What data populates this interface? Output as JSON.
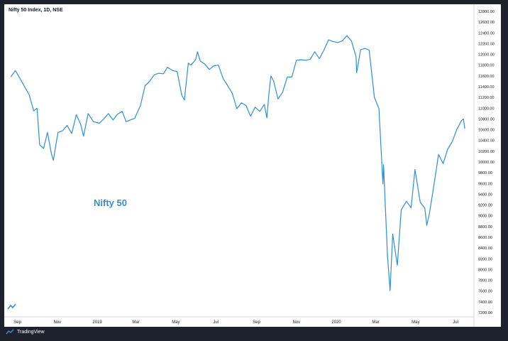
{
  "header": {
    "symbol_title": "Nifty 50 Index, 1D, NSE"
  },
  "series_label": "Nifty 50",
  "branding": {
    "label": "TradingView"
  },
  "colors": {
    "line": "#2d8fd5",
    "background": "#ffffff",
    "frame": "#1e222d"
  },
  "chart_data": {
    "type": "line",
    "grid": false,
    "y_axis_position": "right",
    "ylim": [
      7200,
      12800
    ],
    "y_ticks": [
      12800,
      12600,
      12400,
      12200,
      12000,
      11800,
      11600,
      11400,
      11200,
      11000,
      10800,
      10600,
      10400,
      10200,
      10000,
      9800,
      9600,
      9400,
      9200,
      9000,
      8800,
      8600,
      8400,
      8200,
      8000,
      7800,
      7600,
      7400,
      7200
    ],
    "y_tick_labels": [
      "12800.00",
      "12600.00",
      "12400.00",
      "12200.00",
      "12000.00",
      "11800.00",
      "11600.00",
      "11400.00",
      "11200.00",
      "11000.00",
      "10800.00",
      "10600.00",
      "10400.00",
      "10200.00",
      "10000.00",
      "9800.00",
      "9600.00",
      "9400.00",
      "9200.00",
      "9000.00",
      "8800.00",
      "8600.00",
      "8400.00",
      "8200.00",
      "8000.00",
      "7800.00",
      "7600.00",
      "7400.00",
      "7200.00"
    ],
    "x_tick_labels": [
      {
        "label": "Sep",
        "date": "2018-09-01"
      },
      {
        "label": "Nov",
        "date": "2018-11-01"
      },
      {
        "label": "2019",
        "date": "2019-01-01"
      },
      {
        "label": "Mar",
        "date": "2019-03-01"
      },
      {
        "label": "May",
        "date": "2019-05-01"
      },
      {
        "label": "Jul",
        "date": "2019-07-01"
      },
      {
        "label": "Sep",
        "date": "2019-09-01"
      },
      {
        "label": "Nov",
        "date": "2019-11-01"
      },
      {
        "label": "2020",
        "date": "2020-01-01"
      },
      {
        "label": "Mar",
        "date": "2020-03-01"
      },
      {
        "label": "May",
        "date": "2020-05-01"
      },
      {
        "label": "Jul",
        "date": "2020-07-01"
      }
    ],
    "series": [
      {
        "values": [
          [
            "2018-08-22",
            11580
          ],
          [
            "2018-08-29",
            11700
          ],
          [
            "2018-09-05",
            11550
          ],
          [
            "2018-09-12",
            11400
          ],
          [
            "2018-09-19",
            11250
          ],
          [
            "2018-09-26",
            10950
          ],
          [
            "2018-10-01",
            11000
          ],
          [
            "2018-10-05",
            10320
          ],
          [
            "2018-10-11",
            10250
          ],
          [
            "2018-10-17",
            10550
          ],
          [
            "2018-10-23",
            10150
          ],
          [
            "2018-10-26",
            10030
          ],
          [
            "2018-11-02",
            10550
          ],
          [
            "2018-11-09",
            10580
          ],
          [
            "2018-11-16",
            10680
          ],
          [
            "2018-11-23",
            10530
          ],
          [
            "2018-11-30",
            10880
          ],
          [
            "2018-12-07",
            10690
          ],
          [
            "2018-12-11",
            10480
          ],
          [
            "2018-12-18",
            10900
          ],
          [
            "2018-12-26",
            10750
          ],
          [
            "2019-01-04",
            10720
          ],
          [
            "2019-01-11",
            10800
          ],
          [
            "2019-01-18",
            10900
          ],
          [
            "2019-01-25",
            10780
          ],
          [
            "2019-02-01",
            10890
          ],
          [
            "2019-02-08",
            10940
          ],
          [
            "2019-02-14",
            10750
          ],
          [
            "2019-02-20",
            10780
          ],
          [
            "2019-02-27",
            10810
          ],
          [
            "2019-03-08",
            11050
          ],
          [
            "2019-03-15",
            11420
          ],
          [
            "2019-03-22",
            11500
          ],
          [
            "2019-03-29",
            11620
          ],
          [
            "2019-04-05",
            11650
          ],
          [
            "2019-04-12",
            11640
          ],
          [
            "2019-04-18",
            11760
          ],
          [
            "2019-04-26",
            11700
          ],
          [
            "2019-05-03",
            11680
          ],
          [
            "2019-05-10",
            11240
          ],
          [
            "2019-05-14",
            11150
          ],
          [
            "2019-05-20",
            11840
          ],
          [
            "2019-05-24",
            11800
          ],
          [
            "2019-05-31",
            11900
          ],
          [
            "2019-06-03",
            12050
          ],
          [
            "2019-06-07",
            11880
          ],
          [
            "2019-06-14",
            11820
          ],
          [
            "2019-06-21",
            11720
          ],
          [
            "2019-06-28",
            11790
          ],
          [
            "2019-07-05",
            11800
          ],
          [
            "2019-07-12",
            11550
          ],
          [
            "2019-07-19",
            11420
          ],
          [
            "2019-07-26",
            11280
          ],
          [
            "2019-08-02",
            10990
          ],
          [
            "2019-08-09",
            11100
          ],
          [
            "2019-08-16",
            11050
          ],
          [
            "2019-08-23",
            10850
          ],
          [
            "2019-08-30",
            11020
          ],
          [
            "2019-09-06",
            10940
          ],
          [
            "2019-09-13",
            11070
          ],
          [
            "2019-09-17",
            10820
          ],
          [
            "2019-09-20",
            11270
          ],
          [
            "2019-09-23",
            11600
          ],
          [
            "2019-09-27",
            11510
          ],
          [
            "2019-10-04",
            11170
          ],
          [
            "2019-10-11",
            11300
          ],
          [
            "2019-10-18",
            11580
          ],
          [
            "2019-10-25",
            11580
          ],
          [
            "2019-11-01",
            11890
          ],
          [
            "2019-11-08",
            11900
          ],
          [
            "2019-11-15",
            11890
          ],
          [
            "2019-11-22",
            11910
          ],
          [
            "2019-11-29",
            12050
          ],
          [
            "2019-12-06",
            11920
          ],
          [
            "2019-12-13",
            12080
          ],
          [
            "2019-12-20",
            12270
          ],
          [
            "2019-12-27",
            12240
          ],
          [
            "2020-01-03",
            12220
          ],
          [
            "2020-01-10",
            12250
          ],
          [
            "2020-01-17",
            12350
          ],
          [
            "2020-01-24",
            12250
          ],
          [
            "2020-01-31",
            11960
          ],
          [
            "2020-02-01",
            11660
          ],
          [
            "2020-02-07",
            12090
          ],
          [
            "2020-02-14",
            12110
          ],
          [
            "2020-02-20",
            12080
          ],
          [
            "2020-02-28",
            11200
          ],
          [
            "2020-03-06",
            10990
          ],
          [
            "2020-03-12",
            9590
          ],
          [
            "2020-03-13",
            9950
          ],
          [
            "2020-03-19",
            8260
          ],
          [
            "2020-03-23",
            7610
          ],
          [
            "2020-03-27",
            8660
          ],
          [
            "2020-04-03",
            8080
          ],
          [
            "2020-04-09",
            9110
          ],
          [
            "2020-04-17",
            9270
          ],
          [
            "2020-04-24",
            9150
          ],
          [
            "2020-04-30",
            9860
          ],
          [
            "2020-05-08",
            9250
          ],
          [
            "2020-05-15",
            9140
          ],
          [
            "2020-05-18",
            8820
          ],
          [
            "2020-05-22",
            9040
          ],
          [
            "2020-05-29",
            9580
          ],
          [
            "2020-06-05",
            10140
          ],
          [
            "2020-06-12",
            9970
          ],
          [
            "2020-06-19",
            10240
          ],
          [
            "2020-06-26",
            10380
          ],
          [
            "2020-07-03",
            10610
          ],
          [
            "2020-07-10",
            10770
          ],
          [
            "2020-07-13",
            10800
          ],
          [
            "2020-07-15",
            10620
          ]
        ]
      }
    ]
  }
}
